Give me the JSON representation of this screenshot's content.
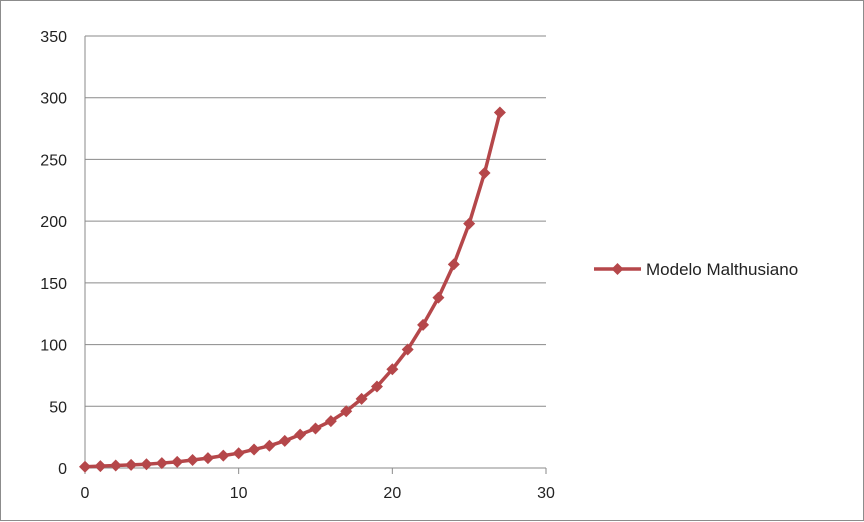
{
  "chart_data": {
    "type": "line",
    "title": "",
    "xlabel": "",
    "ylabel": "",
    "xlim": [
      0,
      30
    ],
    "ylim": [
      0,
      350
    ],
    "x_ticks": [
      "0",
      "10",
      "20",
      "30"
    ],
    "y_ticks": [
      "0",
      "50",
      "100",
      "150",
      "200",
      "250",
      "300",
      "350"
    ],
    "grid": "horizontal",
    "legend_position": "right",
    "series": [
      {
        "name": "Modelo Malthusiano",
        "color": "#b5474a",
        "marker": "diamond",
        "x": [
          0,
          1,
          2,
          3,
          4,
          5,
          6,
          7,
          8,
          9,
          10,
          11,
          12,
          13,
          14,
          15,
          16,
          17,
          18,
          19,
          20,
          21,
          22,
          23,
          24,
          25,
          26,
          27
        ],
        "y": [
          1,
          1.5,
          2,
          2.5,
          3,
          4,
          5,
          6.5,
          8,
          10,
          12,
          15,
          18,
          22,
          27,
          32,
          38,
          46,
          56,
          66,
          80,
          96,
          116,
          138,
          165,
          198,
          239,
          288
        ]
      }
    ]
  }
}
